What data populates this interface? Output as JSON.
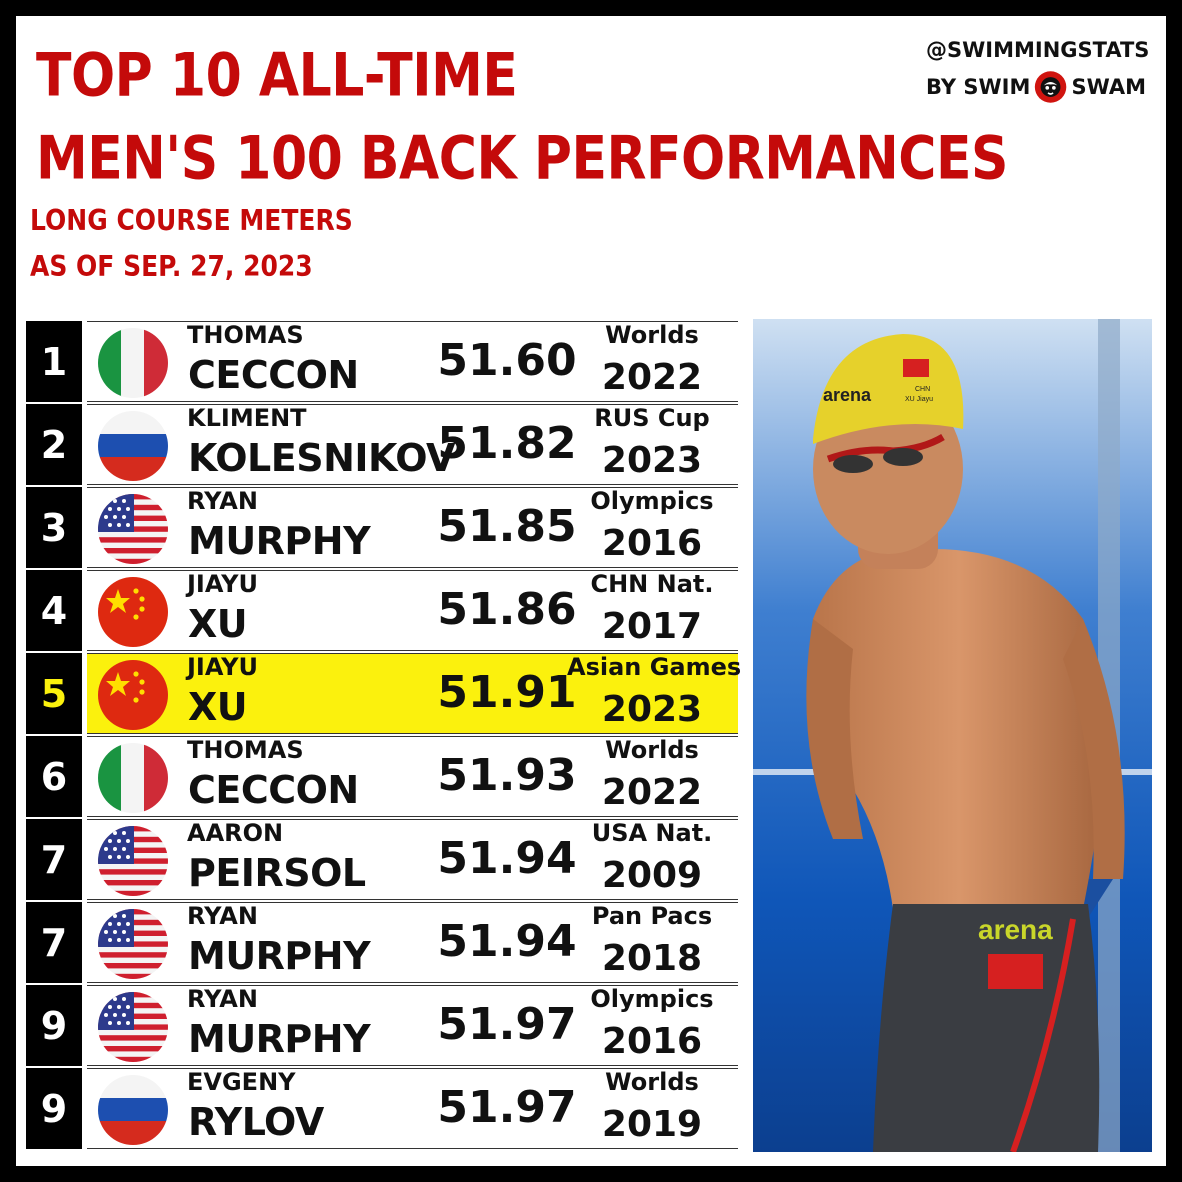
{
  "header": {
    "title_line1": "TOP 10 ALL-TIME",
    "title_line2": "MEN'S 100 BACK PERFORMANCES",
    "subtitle_line1": "LONG COURSE METERS",
    "subtitle_line2": "AS OF SEP. 27, 2023"
  },
  "brand": {
    "handle": "@SWIMMINGSTATS",
    "by": "BY SWIM",
    "swam": "SWAM"
  },
  "colors": {
    "accent_red": "#c40a0a",
    "highlight_yellow": "#fbf10d"
  },
  "rows": [
    {
      "rank": "1",
      "first": "THOMAS",
      "last": "CECCON",
      "time": "51.60",
      "meet": "Worlds",
      "year": "2022",
      "flag": "italy"
    },
    {
      "rank": "2",
      "first": "KLIMENT",
      "last": "KOLESNIKOV",
      "time": "51.82",
      "meet": "RUS Cup",
      "year": "2023",
      "flag": "russia"
    },
    {
      "rank": "3",
      "first": "RYAN",
      "last": "MURPHY",
      "time": "51.85",
      "meet": "Olympics",
      "year": "2016",
      "flag": "usa"
    },
    {
      "rank": "4",
      "first": "JIAYU",
      "last": "XU",
      "time": "51.86",
      "meet": "CHN Nat.",
      "year": "2017",
      "flag": "china"
    },
    {
      "rank": "5",
      "first": "JIAYU",
      "last": "XU",
      "time": "51.91",
      "meet": "Asian Games",
      "year": "2023",
      "flag": "china",
      "highlight": true
    },
    {
      "rank": "6",
      "first": "THOMAS",
      "last": "CECCON",
      "time": "51.93",
      "meet": "Worlds",
      "year": "2022",
      "flag": "italy"
    },
    {
      "rank": "7",
      "first": "AARON",
      "last": "PEIRSOL",
      "time": "51.94",
      "meet": "USA Nat.",
      "year": "2009",
      "flag": "usa"
    },
    {
      "rank": "7",
      "first": "RYAN",
      "last": "MURPHY",
      "time": "51.94",
      "meet": "Pan Pacs",
      "year": "2018",
      "flag": "usa"
    },
    {
      "rank": "9",
      "first": "RYAN",
      "last": "MURPHY",
      "time": "51.97",
      "meet": "Olympics",
      "year": "2016",
      "flag": "usa"
    },
    {
      "rank": "9",
      "first": "EVGENY",
      "last": "RYLOV",
      "time": "51.97",
      "meet": "Worlds",
      "year": "2019",
      "flag": "russia"
    }
  ],
  "photo": {
    "cap_brand": "arena",
    "cap_country": "CHN",
    "cap_name": "XU Jiayu",
    "suit_brand": "arena"
  }
}
